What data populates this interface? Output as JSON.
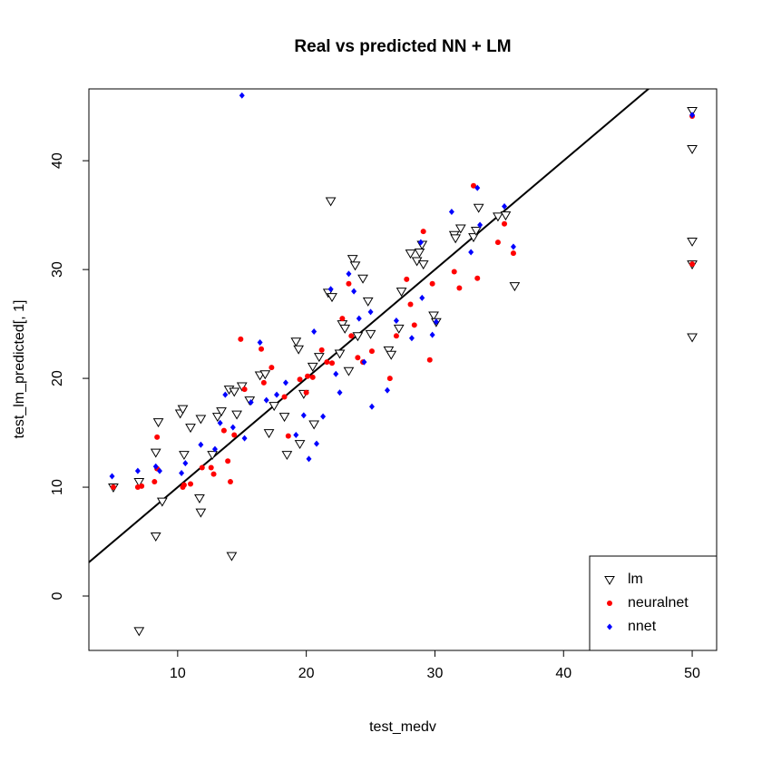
{
  "chart_data": {
    "type": "scatter",
    "title": "Real vs predicted NN + LM",
    "x_label": "test_medv",
    "y_label": "test_lm_predicted[, 1]",
    "xlim": [
      3.1,
      51.9
    ],
    "ylim": [
      -5,
      46.6
    ],
    "xticks": [
      10,
      20,
      30,
      40,
      50
    ],
    "yticks": [
      0,
      10,
      20,
      30,
      40
    ],
    "abline": {
      "intercept": 0,
      "slope": 1
    },
    "legend_position": "bottomright",
    "series": [
      {
        "name": "lm",
        "color": "#000000",
        "marker": "triangle-down",
        "x": [
          5,
          7,
          7,
          8.3,
          8.3,
          8.5,
          8.8,
          10.2,
          10.4,
          10.5,
          11,
          11.7,
          11.8,
          11.8,
          12.7,
          13.1,
          13.4,
          14,
          14.2,
          14.4,
          14.6,
          15,
          15.6,
          16.4,
          16.8,
          17.1,
          17.5,
          18.3,
          18.5,
          19.2,
          19.4,
          19.5,
          19.8,
          20.5,
          20.6,
          21,
          21.7,
          21.9,
          22,
          22.6,
          22.8,
          23,
          23.3,
          23.6,
          23.8,
          24,
          24.4,
          24.8,
          25,
          26.4,
          26.6,
          27.2,
          27.4,
          28.1,
          28.6,
          28.8,
          29,
          29.1,
          29.9,
          30.1,
          31.5,
          31.6,
          32,
          33,
          33.2,
          33.4,
          34.9,
          35.5,
          36.2,
          50,
          50,
          50,
          50,
          50
        ],
        "values": [
          10,
          -3.2,
          10.5,
          5.5,
          13.2,
          16,
          8.7,
          16.8,
          17.2,
          13,
          15.5,
          9,
          7.7,
          16.3,
          13,
          16.5,
          17,
          19,
          3.7,
          18.8,
          16.7,
          19.3,
          18,
          20.3,
          20.4,
          15,
          17.5,
          16.5,
          13,
          23.4,
          22.7,
          14,
          18.6,
          21.1,
          15.8,
          22,
          27.9,
          36.3,
          27.5,
          22.3,
          25,
          24.6,
          20.7,
          31,
          30.4,
          23.9,
          29.2,
          27.1,
          24.1,
          22.6,
          22.2,
          24.6,
          28,
          31.5,
          30.8,
          31.6,
          32.3,
          30.5,
          25.8,
          25.2,
          33.2,
          32.9,
          33.8,
          33,
          33.6,
          35.7,
          34.9,
          35,
          28.5,
          44.6,
          41.1,
          32.6,
          30.5,
          23.8
        ]
      },
      {
        "name": "neuralnet",
        "color": "#ff0000",
        "marker": "circle",
        "x": [
          5,
          6.9,
          7.2,
          8.2,
          8.4,
          8.4,
          10.4,
          10.5,
          11,
          11.9,
          12.6,
          12.8,
          13.6,
          13.9,
          14.1,
          14.4,
          14.9,
          15.2,
          16.5,
          16.7,
          17.3,
          18.3,
          18.6,
          19.5,
          20,
          20.1,
          20.5,
          21.2,
          21.6,
          22,
          22.8,
          23.3,
          23.5,
          24,
          24.4,
          25.1,
          26.5,
          27,
          27.8,
          28.1,
          28.4,
          29.1,
          29.6,
          29.8,
          31.5,
          31.9,
          33,
          33.3,
          34.9,
          35.4,
          36.1,
          50,
          50
        ],
        "values": [
          10,
          10,
          10.1,
          10.5,
          14.6,
          11.7,
          10,
          10.2,
          10.3,
          11.8,
          11.8,
          11.2,
          15.2,
          12.4,
          10.5,
          14.8,
          23.6,
          19,
          22.7,
          19.6,
          21,
          18.3,
          14.7,
          19.9,
          18.7,
          20.2,
          20.1,
          22.6,
          21.5,
          21.4,
          25.5,
          28.7,
          23.9,
          21.9,
          21.5,
          22.5,
          20,
          23.9,
          29.1,
          26.8,
          24.9,
          33.5,
          21.7,
          28.7,
          29.8,
          28.3,
          37.7,
          29.2,
          32.5,
          34.2,
          31.5,
          44.1,
          30.5
        ]
      },
      {
        "name": "nnet",
        "color": "#0000ff",
        "marker": "diamond",
        "x": [
          4.9,
          6.9,
          8.3,
          8.6,
          10.3,
          10.6,
          11.8,
          12.9,
          13.3,
          13.7,
          14.3,
          15,
          15.2,
          15.7,
          16.4,
          16.9,
          17.7,
          18.4,
          19.2,
          19.8,
          20.2,
          20.6,
          20.8,
          21.3,
          21.9,
          22.3,
          22.6,
          23.3,
          23.7,
          24.1,
          24.5,
          25,
          25.1,
          26.3,
          27,
          28.2,
          28.9,
          29,
          29.8,
          30.1,
          31.3,
          32.8,
          33.3,
          33.5,
          35.4,
          36.1,
          50
        ],
        "values": [
          11,
          11.5,
          11.9,
          11.5,
          11.3,
          12.2,
          13.9,
          13.5,
          15.9,
          18.5,
          15.5,
          46,
          14.5,
          17.8,
          23.3,
          18,
          18.5,
          19.6,
          14.8,
          16.6,
          12.6,
          24.3,
          14,
          16.5,
          28.2,
          20.4,
          18.7,
          29.6,
          28,
          25.5,
          21.5,
          26.1,
          17.4,
          18.9,
          25.3,
          23.7,
          32.5,
          27.4,
          24,
          25.2,
          35.3,
          31.6,
          37.5,
          34.1,
          35.8,
          32.1,
          44.2
        ]
      }
    ]
  }
}
